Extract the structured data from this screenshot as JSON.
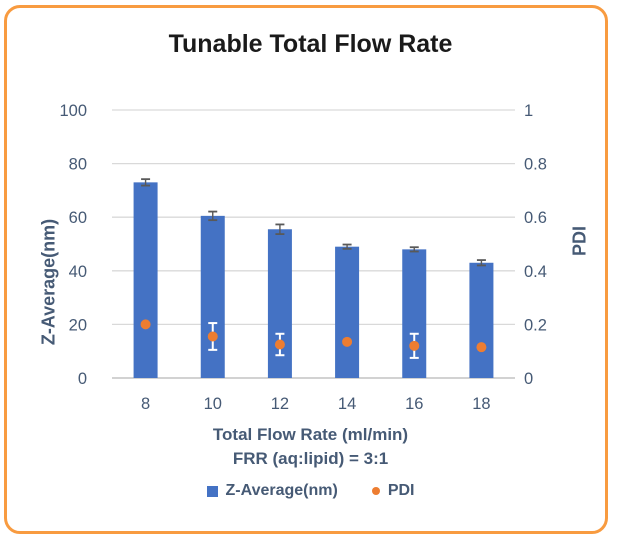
{
  "title": "Tunable Total Flow Rate",
  "colors": {
    "bar": "#4472C4",
    "marker": "#ED7D31",
    "axis_text": "#465A75",
    "gridline": "#D9D9D9",
    "axis_line": "#D2D2D2",
    "bar_error": "#595959",
    "marker_error": "#FFFFFF",
    "border": "#F89B40",
    "title_text": "#1A1A1A"
  },
  "chart_data": {
    "type": "combo bar + scatter with error bars",
    "title": "Tunable Total Flow Rate",
    "categories": [
      "8",
      "10",
      "12",
      "14",
      "16",
      "18"
    ],
    "series": [
      {
        "name": "Z-Average(nm)",
        "type": "bar",
        "axis": "left",
        "color": "#4472C4",
        "values": [
          73,
          60.5,
          55.5,
          49,
          48,
          43
        ],
        "errors": [
          1.2,
          1.6,
          1.8,
          0.8,
          0.8,
          1.0
        ]
      },
      {
        "name": "PDI",
        "type": "scatter",
        "axis": "right",
        "color": "#ED7D31",
        "values": [
          0.2,
          0.155,
          0.125,
          0.135,
          0.12,
          0.115
        ],
        "errors": [
          0,
          0.05,
          0.04,
          0,
          0.045,
          0
        ]
      }
    ],
    "left_axis": {
      "label": "Z-Average(nm)",
      "min": 0,
      "max": 100,
      "ticks": [
        0,
        20,
        40,
        60,
        80,
        100
      ]
    },
    "right_axis": {
      "label": "PDI",
      "min": 0,
      "max": 1,
      "ticks": [
        0,
        0.2,
        0.4,
        0.6,
        0.8,
        1
      ]
    },
    "xlabel": "Total Flow Rate (ml/min)",
    "xlabel_note": "FRR (aq:lipid) = 3:1",
    "grid": true,
    "legend_position": "bottom"
  }
}
